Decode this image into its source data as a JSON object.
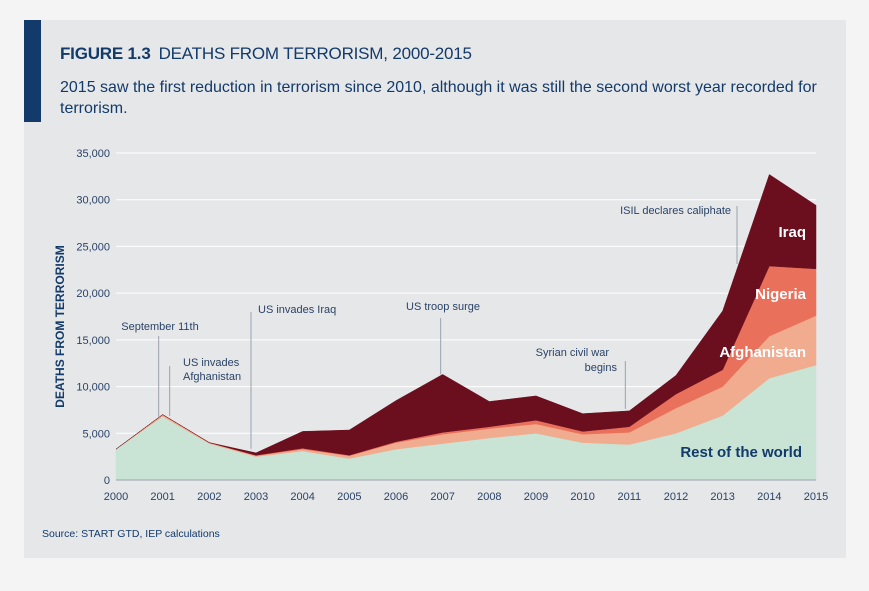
{
  "header": {
    "figure_label": "FIGURE 1.3",
    "figure_title": "DEATHS FROM TERRORISM, 2000-2015",
    "subtitle": "2015 saw the first reduction in terrorism since 2010, although it was still the second worst year recorded for terrorism."
  },
  "source": "Source: START GTD, IEP calculations",
  "colors": {
    "rest": "#c9e3d4",
    "afghanistan": "#f1ab8f",
    "nigeria": "#e9705a",
    "iraq": "#6b0f1f",
    "text": "#123a6b"
  },
  "chart_data": {
    "type": "area",
    "stacked": true,
    "ylabel": "DEATHS FROM TERRORISM",
    "xlabel": "",
    "ylim": [
      0,
      35000
    ],
    "y_ticks": [
      "0",
      "5,000",
      "10,000",
      "15,000",
      "20,000",
      "25,000",
      "30,000",
      "35,000"
    ],
    "x": [
      "2000",
      "2001",
      "2002",
      "2003",
      "2004",
      "2005",
      "2006",
      "2007",
      "2008",
      "2009",
      "2010",
      "2011",
      "2012",
      "2013",
      "2014",
      "2015"
    ],
    "grid": true,
    "series": [
      {
        "name": "Rest of the world",
        "values": [
          3300,
          6800,
          3900,
          2500,
          3100,
          2300,
          3300,
          3900,
          4500,
          5000,
          4000,
          3800,
          5000,
          6900,
          10900,
          12300
        ]
      },
      {
        "name": "Afghanistan",
        "values": [
          0,
          200,
          100,
          100,
          200,
          300,
          700,
          1000,
          1000,
          1000,
          900,
          1300,
          2700,
          3100,
          4500,
          5300
        ]
      },
      {
        "name": "Nigeria",
        "values": [
          0,
          0,
          0,
          50,
          100,
          50,
          100,
          200,
          200,
          400,
          300,
          600,
          1500,
          1800,
          7500,
          5000
        ]
      },
      {
        "name": "Iraq",
        "values": [
          0,
          0,
          0,
          250,
          1800,
          2700,
          4400,
          6200,
          2700,
          2600,
          1900,
          1700,
          2000,
          6300,
          9800,
          6800
        ]
      }
    ],
    "annotations": [
      {
        "text": "September 11th",
        "x": "2001"
      },
      {
        "text": "US invades Afghanistan",
        "x": "2001"
      },
      {
        "text": "US invades Iraq",
        "x": "2003"
      },
      {
        "text": "US troop surge",
        "x": "2007"
      },
      {
        "text": "Syrian civil war begins",
        "x": "2011"
      },
      {
        "text": "ISIL declares caliphate",
        "x": "2014"
      }
    ]
  }
}
